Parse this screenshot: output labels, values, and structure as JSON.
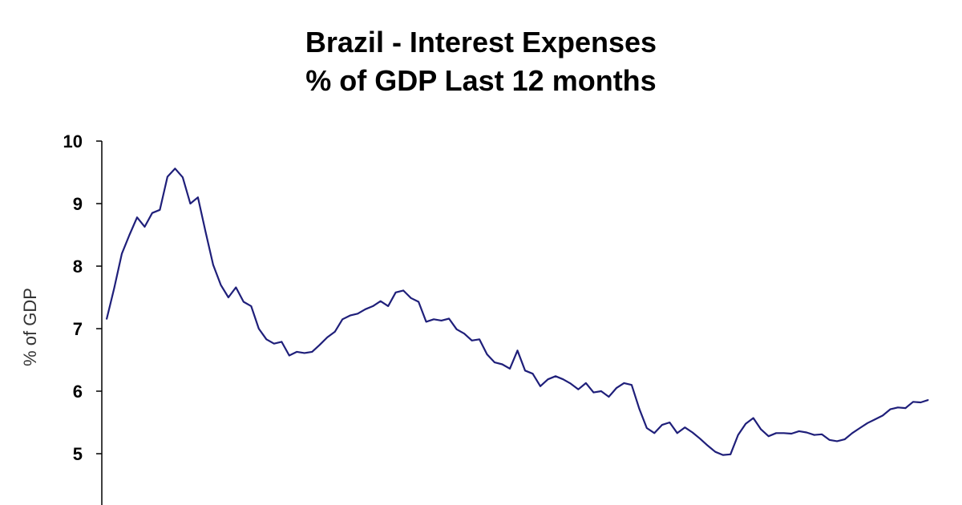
{
  "chart_data": {
    "type": "line",
    "title": "Brazil - Interest Expenses",
    "subtitle": "% of GDP Last 12 months",
    "xlabel": "",
    "ylabel": "% of GDP",
    "ylim": [
      4.2,
      10
    ],
    "yticks": [
      5,
      6,
      7,
      8,
      9,
      10
    ],
    "grid": false,
    "legend": "none",
    "line_color": "#1f1f7a",
    "series": [
      {
        "values": [
          7.15,
          7.65,
          8.2,
          8.5,
          8.78,
          8.63,
          8.85,
          8.9,
          9.43,
          9.56,
          9.42,
          9.0,
          9.1,
          8.55,
          8.02,
          7.7,
          7.5,
          7.66,
          7.43,
          7.36,
          7.0,
          6.83,
          6.76,
          6.79,
          6.57,
          6.63,
          6.61,
          6.63,
          6.74,
          6.86,
          6.95,
          7.15,
          7.21,
          7.24,
          7.31,
          7.36,
          7.44,
          7.36,
          7.58,
          7.61,
          7.49,
          7.43,
          7.11,
          7.15,
          7.13,
          7.16,
          6.99,
          6.92,
          6.81,
          6.83,
          6.59,
          6.46,
          6.43,
          6.36,
          6.65,
          6.33,
          6.28,
          6.08,
          6.19,
          6.24,
          6.19,
          6.12,
          6.03,
          6.13,
          5.98,
          6.0,
          5.91,
          6.05,
          6.13,
          6.1,
          5.72,
          5.41,
          5.33,
          5.46,
          5.5,
          5.33,
          5.42,
          5.34,
          5.24,
          5.13,
          5.03,
          4.98,
          4.99,
          5.3,
          5.48,
          5.57,
          5.39,
          5.28,
          5.33,
          5.33,
          5.32,
          5.36,
          5.34,
          5.3,
          5.31,
          5.22,
          5.2,
          5.23,
          5.33,
          5.41,
          5.49,
          5.55,
          5.61,
          5.71,
          5.74,
          5.73,
          5.83,
          5.82,
          5.86
        ]
      }
    ]
  }
}
